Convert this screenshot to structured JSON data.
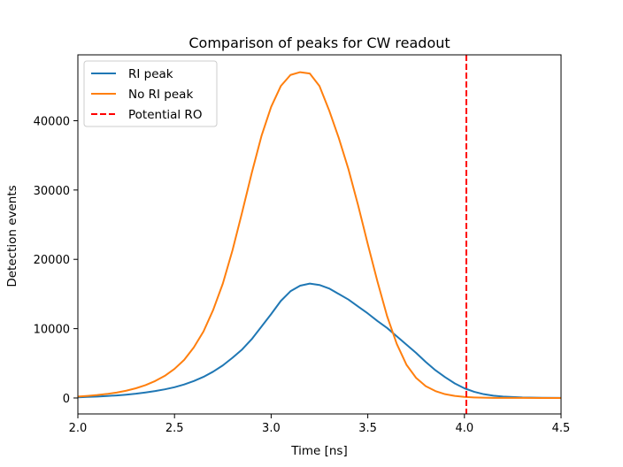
{
  "chart_data": {
    "type": "line",
    "title": "Comparison of peaks for CW readout",
    "xlabel": "Time [ns]",
    "ylabel": "Detection events",
    "xlim": [
      2.0,
      4.5
    ],
    "ylim": [
      -2300,
      49500
    ],
    "xticks": [
      2.0,
      2.5,
      3.0,
      3.5,
      4.0,
      4.5
    ],
    "xtick_labels": [
      "2.0",
      "2.5",
      "3.0",
      "3.5",
      "4.0",
      "4.5"
    ],
    "yticks": [
      0,
      10000,
      20000,
      30000,
      40000
    ],
    "ytick_labels": [
      "0",
      "10000",
      "20000",
      "30000",
      "40000"
    ],
    "grid": false,
    "legend_position": "top-left",
    "series": [
      {
        "name": "RI peak",
        "color": "#1f77b4",
        "style": "solid",
        "x": [
          2.0,
          2.05,
          2.1,
          2.15,
          2.2,
          2.25,
          2.3,
          2.35,
          2.4,
          2.45,
          2.5,
          2.55,
          2.6,
          2.65,
          2.7,
          2.75,
          2.8,
          2.85,
          2.9,
          2.95,
          3.0,
          3.05,
          3.1,
          3.15,
          3.2,
          3.25,
          3.3,
          3.35,
          3.4,
          3.45,
          3.5,
          3.55,
          3.6,
          3.65,
          3.7,
          3.75,
          3.8,
          3.85,
          3.9,
          3.95,
          4.0,
          4.05,
          4.1,
          4.15,
          4.2,
          4.3,
          4.4,
          4.5
        ],
        "values": [
          100,
          150,
          200,
          280,
          370,
          480,
          620,
          800,
          1000,
          1250,
          1550,
          1950,
          2450,
          3050,
          3800,
          4700,
          5800,
          7000,
          8500,
          10300,
          12100,
          14000,
          15400,
          16200,
          16500,
          16300,
          15800,
          15000,
          14200,
          13200,
          12200,
          11100,
          10100,
          8900,
          7700,
          6500,
          5200,
          4000,
          3000,
          2100,
          1400,
          900,
          550,
          330,
          200,
          80,
          30,
          10
        ]
      },
      {
        "name": "No RI peak",
        "color": "#ff7f0e",
        "style": "solid",
        "x": [
          2.0,
          2.05,
          2.1,
          2.15,
          2.2,
          2.25,
          2.3,
          2.35,
          2.4,
          2.45,
          2.5,
          2.55,
          2.6,
          2.65,
          2.7,
          2.75,
          2.8,
          2.85,
          2.9,
          2.95,
          3.0,
          3.05,
          3.1,
          3.15,
          3.2,
          3.25,
          3.3,
          3.35,
          3.4,
          3.45,
          3.5,
          3.55,
          3.6,
          3.65,
          3.7,
          3.75,
          3.8,
          3.85,
          3.9,
          3.95,
          4.0,
          4.05,
          4.1,
          4.15,
          4.2,
          4.3,
          4.4,
          4.5
        ],
        "values": [
          200,
          300,
          420,
          580,
          780,
          1050,
          1400,
          1850,
          2450,
          3200,
          4200,
          5500,
          7300,
          9600,
          12700,
          16500,
          21300,
          26800,
          32500,
          37800,
          42000,
          45000,
          46600,
          47000,
          46800,
          45000,
          41500,
          37500,
          33000,
          27800,
          22200,
          16800,
          11800,
          7800,
          4800,
          2900,
          1700,
          1000,
          550,
          300,
          150,
          80,
          40,
          20,
          10,
          5,
          2,
          0
        ]
      },
      {
        "name": "Potential RO",
        "color": "#ff0000",
        "style": "dashed",
        "type": "vline",
        "x_value": 4.01
      }
    ]
  }
}
